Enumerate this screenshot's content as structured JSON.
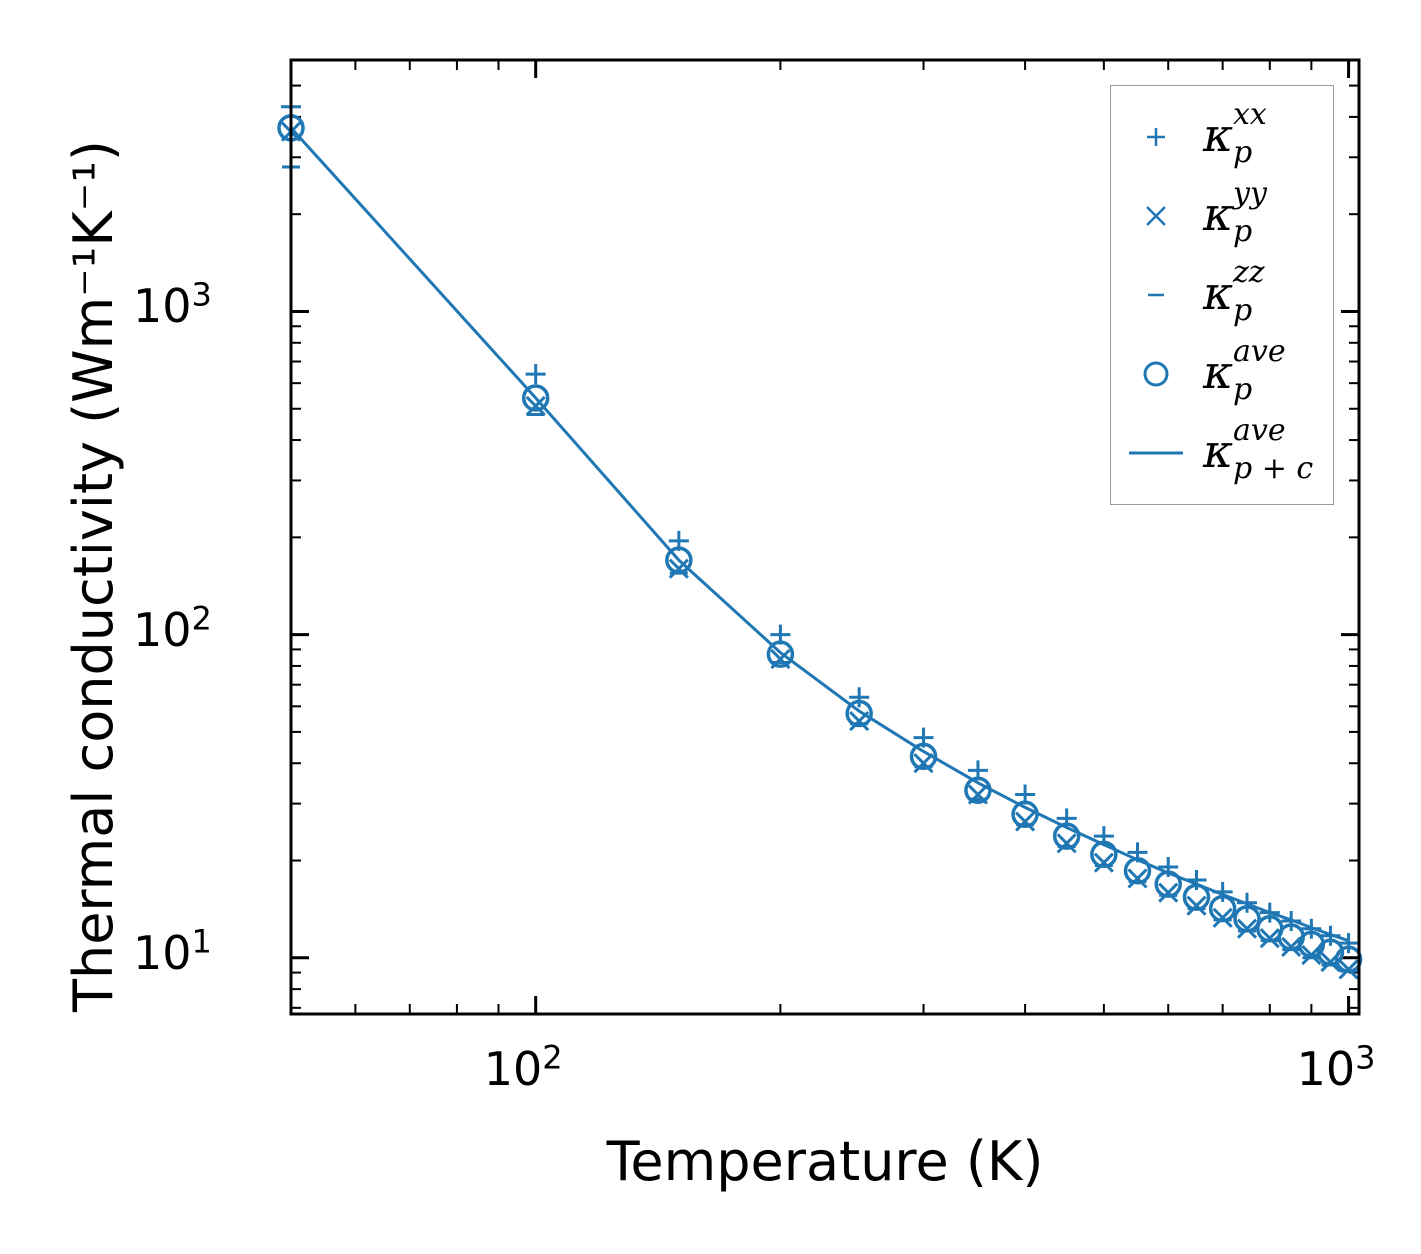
{
  "chart_data": {
    "type": "scatter",
    "xscale": "log",
    "yscale": "log",
    "xlabel": "Temperature (K)",
    "ylabel": "Thermal conductivity (Wm⁻¹K⁻¹)",
    "xlim": [
      50,
      1030
    ],
    "ylim": [
      6.7,
      6000
    ],
    "xticks": [
      {
        "value": 100,
        "base": "10",
        "exp": "2"
      },
      {
        "value": 1000,
        "base": "10",
        "exp": "3"
      }
    ],
    "yticks": [
      {
        "value": 10,
        "base": "10",
        "exp": "1"
      },
      {
        "value": 100,
        "base": "10",
        "exp": "2"
      },
      {
        "value": 1000,
        "base": "10",
        "exp": "3"
      }
    ],
    "legend_position": "top-right",
    "x": [
      50,
      100,
      150,
      200,
      250,
      300,
      350,
      400,
      450,
      500,
      550,
      600,
      650,
      700,
      750,
      800,
      850,
      900,
      950,
      1000
    ],
    "series": [
      {
        "name": "κ_p^xx",
        "label_base": "κ",
        "label_sup": "xx",
        "label_sub": "p",
        "marker": "plus",
        "values": [
          4300,
          640,
          195,
          100,
          64,
          48,
          38,
          32,
          27,
          23.8,
          21.2,
          19.1,
          17.4,
          16.0,
          14.8,
          13.8,
          13.0,
          12.3,
          11.7,
          11.1
        ]
      },
      {
        "name": "κ_p^yy",
        "label_base": "κ",
        "label_sup": "yy",
        "label_sub": "p",
        "marker": "x",
        "values": [
          3600,
          510,
          160,
          84,
          54,
          40,
          32,
          26.4,
          22.6,
          19.7,
          17.6,
          15.9,
          14.5,
          13.3,
          12.3,
          11.5,
          10.8,
          10.2,
          9.7,
          9.2
        ]
      },
      {
        "name": "κ_p^zz",
        "label_base": "κ",
        "label_sup": "zz",
        "label_sub": "p",
        "marker": "dash",
        "values": [
          2800,
          480,
          155,
          82,
          53,
          39,
          31,
          25.8,
          22.1,
          19.3,
          17.2,
          15.6,
          14.2,
          13.1,
          12.1,
          11.3,
          10.6,
          10.0,
          9.5,
          9.1
        ]
      },
      {
        "name": "κ_p^ave",
        "label_base": "κ",
        "label_sup": "ave",
        "label_sub": "p",
        "marker": "circle",
        "values": [
          3700,
          540,
          170,
          87,
          57,
          42,
          33,
          27.8,
          23.8,
          20.9,
          18.6,
          16.9,
          15.4,
          14.2,
          13.2,
          12.3,
          11.6,
          11.0,
          10.4,
          9.9
        ]
      },
      {
        "name": "κ_p+c^ave",
        "label_base": "κ",
        "label_sup": "ave",
        "label_sub": "p + c",
        "marker": "line",
        "values": [
          3700,
          540,
          170,
          88,
          58,
          43.5,
          34.8,
          29.2,
          25.3,
          22.4,
          20.1,
          18.3,
          16.9,
          15.7,
          14.7,
          13.8,
          13.1,
          12.4,
          11.8,
          11.3
        ]
      }
    ],
    "colors": {
      "series": "#1f77b4",
      "axis": "#000000",
      "legend_border": "#999999"
    }
  }
}
